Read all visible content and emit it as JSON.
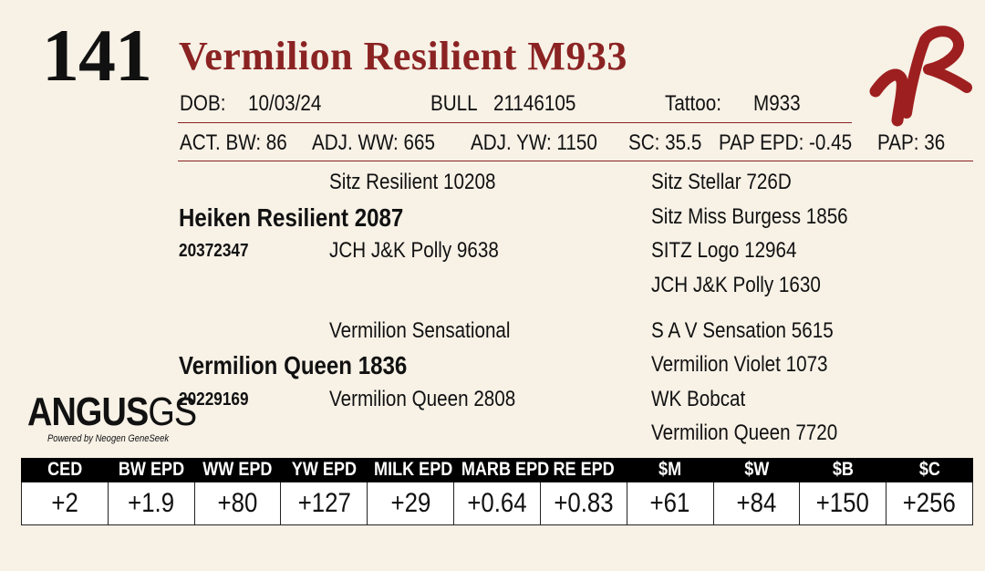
{
  "lot_number": "141",
  "animal_name": "Vermilion Resilient M933",
  "info_row1": {
    "dob_label": "DOB:",
    "dob_value": "10/03/24",
    "sex_label": "BULL",
    "reg_number": "21146105",
    "tattoo_label": "Tattoo:",
    "tattoo_value": "M933"
  },
  "info_row2": {
    "act_bw": "ACT. BW: 86",
    "adj_ww": "ADJ. WW: 665",
    "adj_yw": "ADJ. YW: 1150",
    "sc": "SC: 35.5",
    "pap_epd": "PAP EPD: -0.45",
    "pap": "PAP: 36"
  },
  "pedigree": {
    "sire": {
      "name": "Heiken Resilient 2087",
      "reg": "20372347"
    },
    "sire_sire": "Sitz Resilient 10208",
    "sire_dam": "JCH J&K Polly 9638",
    "sire_sire_sire": "Sitz Stellar 726D",
    "sire_sire_dam": "Sitz Miss Burgess 1856",
    "sire_dam_sire": "SITZ Logo 12964",
    "sire_dam_dam": "JCH J&K Polly 1630",
    "dam": {
      "name": "Vermilion Queen 1836",
      "reg": "20229169"
    },
    "dam_sire": "Vermilion Sensational",
    "dam_dam": "Vermilion Queen 2808",
    "dam_sire_sire": "S A V Sensation 5615",
    "dam_sire_dam": "Vermilion Violet 1073",
    "dam_dam_sire": "WK Bobcat",
    "dam_dam_dam": "Vermilion Queen 7720"
  },
  "logo": {
    "main": "ANGUS",
    "suffix": "GS",
    "tagline": "Powered by Neogen GeneSeek"
  },
  "brand_color": "#8b2323",
  "epd_headers": [
    "CED",
    "BW EPD",
    "WW EPD",
    "YW EPD",
    "MILK EPD",
    "MARB EPD",
    "RE EPD",
    "$M",
    "$W",
    "$B",
    "$C"
  ],
  "epd_values": [
    "+2",
    "+1.9",
    "+80",
    "+127",
    "+29",
    "+0.64",
    "+0.83",
    "+61",
    "+84",
    "+150",
    "+256"
  ]
}
